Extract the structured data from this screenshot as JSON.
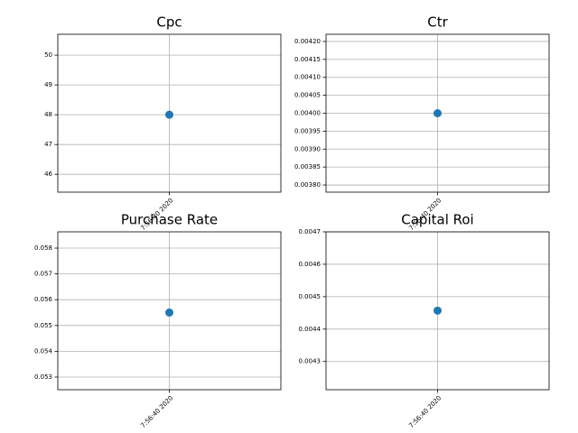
{
  "chart_data": [
    {
      "type": "scatter",
      "title": "Cpc",
      "categories": [
        "7:56:40 2020"
      ],
      "values": [
        48
      ],
      "color": "#1f77b4",
      "ylim": [
        45.4,
        50.7
      ],
      "yticks": [
        46,
        47,
        48,
        49,
        50
      ],
      "grid": true
    },
    {
      "type": "scatter",
      "title": "Ctr",
      "categories": [
        "7:56:40 2020"
      ],
      "values": [
        0.004
      ],
      "color": "#1f77b4",
      "ylim": [
        0.00378,
        0.00422
      ],
      "yticks": [
        {
          "value": 0.0038,
          "label": "0.00380"
        },
        0.00385,
        {
          "value": 0.0039,
          "label": "0.00390"
        },
        0.00395,
        {
          "value": 0.004,
          "label": "0.00400"
        },
        0.00405,
        {
          "value": 0.0041,
          "label": "0.00410"
        },
        0.00415,
        {
          "value": 0.0042,
          "label": "0.00420"
        }
      ],
      "grid": true
    },
    {
      "type": "scatter",
      "title": "Purchase Rate",
      "categories": [
        "7:56:40 2020"
      ],
      "values": [
        0.0555
      ],
      "color": "#1f77b4",
      "ylim": [
        0.05251,
        0.05863
      ],
      "yticks": [
        0.053,
        0.054,
        0.055,
        0.056,
        0.057,
        0.058
      ],
      "grid": true
    },
    {
      "type": "scatter",
      "title": "Capital Roi",
      "categories": [
        "7:56:40 2020"
      ],
      "values": [
        0.004457
      ],
      "color": "#1f77b4",
      "ylim": [
        0.004213,
        0.0047
      ],
      "yticks": [
        0.0043,
        0.0044,
        0.0045,
        0.0046,
        0.0047
      ],
      "grid": true
    }
  ]
}
